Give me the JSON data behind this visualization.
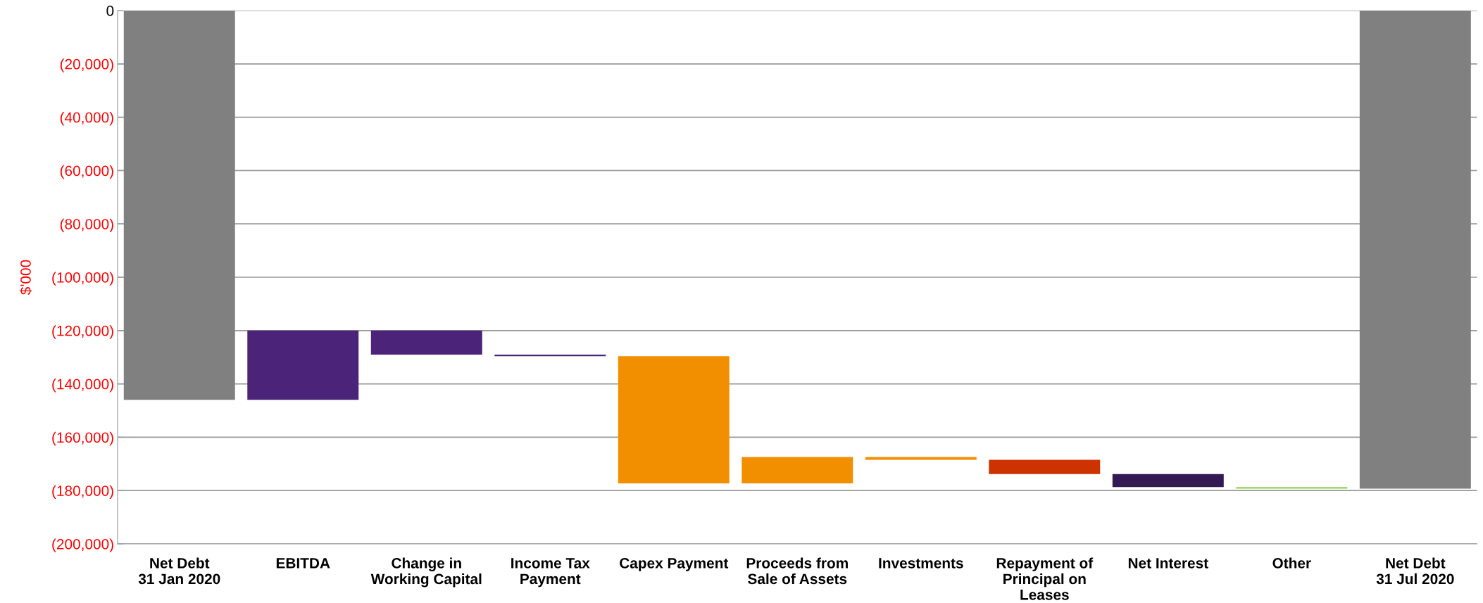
{
  "chart_data": {
    "type": "bar",
    "ylabel": "$'000",
    "categories": [
      "Net Debt\n31 Jan 2020",
      "EBITDA",
      "Change in\nWorking Capital",
      "Income Tax\nPayment",
      "Capex Payment",
      "Proceeds from\nSale of Assets",
      "Investments",
      "Repayment of\nPrincipal on\nLeases",
      "Net Interest",
      "Other",
      "Net Debt\n31 Jul 2020"
    ],
    "base": [
      0,
      -146000,
      -120000,
      -129000,
      -129600,
      -177300,
      -167400,
      -168500,
      -173800,
      -178700,
      0
    ],
    "values": [
      -146000,
      26000,
      -9000,
      -600,
      -47700,
      9900,
      -1100,
      -5300,
      -4900,
      -600,
      -179300
    ],
    "colors": [
      "#808080",
      "#4b247a",
      "#4b247a",
      "#4b247a",
      "#f28f00",
      "#f28f00",
      "#f28f00",
      "#cc3300",
      "#331a52",
      "#92d050",
      "#808080"
    ],
    "ylim": [
      -200000,
      0
    ],
    "yticks": [
      {
        "value": -200000,
        "label": "(200,000)"
      },
      {
        "value": -180000,
        "label": "(180,000)"
      },
      {
        "value": -160000,
        "label": "(160,000)"
      },
      {
        "value": -140000,
        "label": "(140,000)"
      },
      {
        "value": -120000,
        "label": "(120,000)"
      },
      {
        "value": -100000,
        "label": "(100,000)"
      },
      {
        "value": -80000,
        "label": "(80,000)"
      },
      {
        "value": -60000,
        "label": "(60,000)"
      },
      {
        "value": -40000,
        "label": "(40,000)"
      },
      {
        "value": -20000,
        "label": "(20,000)"
      },
      0
    ],
    "grid": "y"
  }
}
